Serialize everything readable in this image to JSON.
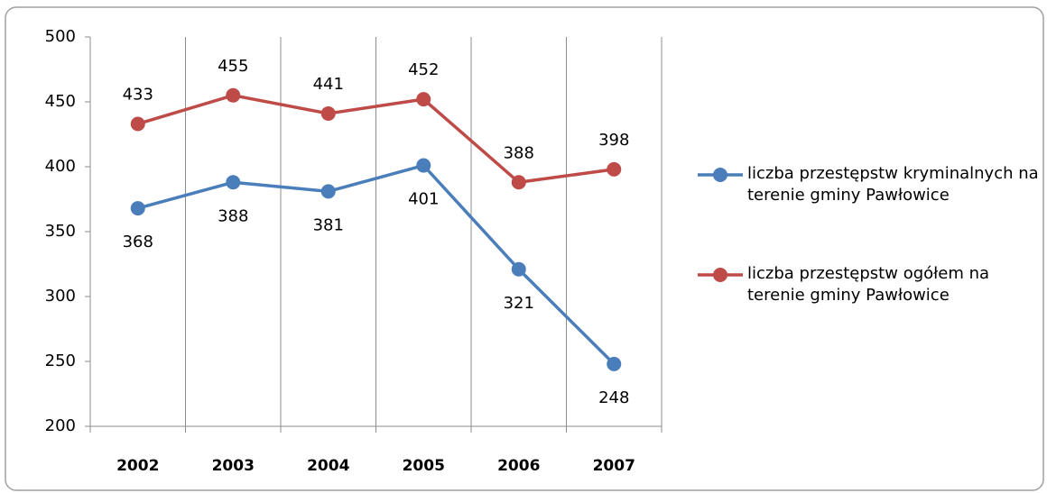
{
  "chart_data": {
    "type": "line",
    "categories": [
      "2002",
      "2003",
      "2004",
      "2005",
      "2006",
      "2007"
    ],
    "series": [
      {
        "name": "liczba przestępstw kryminalnych na terenie gminy Pawłowice",
        "color": "#4a7ebb",
        "values": [
          368,
          388,
          381,
          401,
          321,
          248
        ]
      },
      {
        "name": "liczba przestępstw ogółem na terenie gminy Pawłowice",
        "color": "#be4b48",
        "values": [
          433,
          455,
          441,
          452,
          388,
          398
        ]
      }
    ],
    "ylim": [
      200,
      500
    ],
    "yticks": [
      200,
      250,
      300,
      350,
      400,
      450,
      500
    ],
    "grid": "vertical",
    "legend": "right"
  }
}
